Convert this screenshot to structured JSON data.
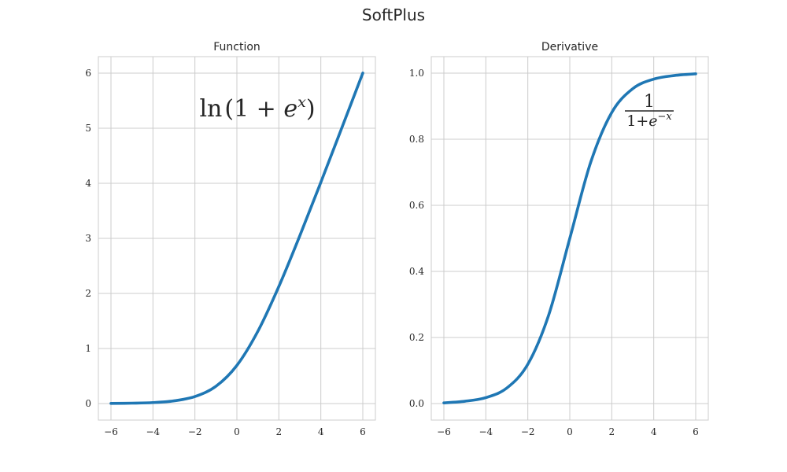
{
  "figure": {
    "title": "SoftPlus"
  },
  "colors": {
    "series": "#1f77b4",
    "grid": "#cccccc",
    "text": "#262626"
  },
  "chart_data": [
    {
      "type": "line",
      "title": "Function",
      "xlabel": "",
      "ylabel": "",
      "xlim": [
        -6.6,
        6.6
      ],
      "ylim": [
        -0.3,
        6.3
      ],
      "grid": true,
      "xticks": [
        -6,
        -4,
        -2,
        0,
        2,
        4,
        6
      ],
      "xtick_labels": [
        "−6",
        "−4",
        "−2",
        "0",
        "2",
        "4",
        "6"
      ],
      "yticks": [
        0,
        1,
        2,
        3,
        4,
        5,
        6
      ],
      "ytick_labels": [
        "0",
        "1",
        "2",
        "3",
        "4",
        "5",
        "6"
      ],
      "annotation": "ln(1 + e^x)",
      "series": [
        {
          "x": [
            -6,
            -5,
            -4,
            -3,
            -2,
            -1,
            0,
            1,
            2,
            3,
            4,
            5,
            6
          ],
          "values": [
            0.002,
            0.007,
            0.018,
            0.049,
            0.127,
            0.313,
            0.693,
            1.313,
            2.127,
            3.049,
            4.018,
            5.007,
            6.002
          ]
        }
      ]
    },
    {
      "type": "line",
      "title": "Derivative",
      "xlabel": "",
      "ylabel": "",
      "xlim": [
        -6.6,
        6.6
      ],
      "ylim": [
        -0.05,
        1.05
      ],
      "grid": true,
      "xticks": [
        -6,
        -4,
        -2,
        0,
        2,
        4,
        6
      ],
      "xtick_labels": [
        "−6",
        "−4",
        "−2",
        "0",
        "2",
        "4",
        "6"
      ],
      "yticks": [
        0,
        0.2,
        0.4,
        0.6,
        0.8,
        1.0
      ],
      "ytick_labels": [
        "0.0",
        "0.2",
        "0.4",
        "0.6",
        "0.8",
        "1.0"
      ],
      "annotation": "1 / (1+e^−x)",
      "series": [
        {
          "x": [
            -6,
            -5,
            -4,
            -3,
            -2,
            -1,
            0,
            1,
            2,
            3,
            4,
            5,
            6
          ],
          "values": [
            0.002,
            0.007,
            0.018,
            0.047,
            0.119,
            0.269,
            0.5,
            0.731,
            0.881,
            0.953,
            0.982,
            0.993,
            0.998
          ]
        }
      ]
    }
  ]
}
